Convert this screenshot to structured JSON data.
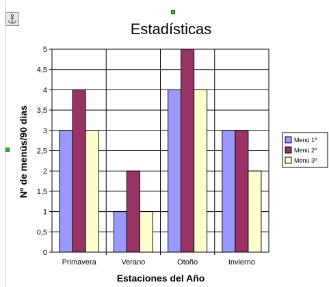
{
  "chart_data": {
    "type": "bar",
    "title": "Estadísticas",
    "xlabel": "Estaciones del Año",
    "ylabel": "Nº de menús/90 dias",
    "categories": [
      "Primavera",
      "Verano",
      "Otoño",
      "Invierno"
    ],
    "ylim": [
      0,
      5
    ],
    "yticks": [
      "0",
      "0,5",
      "1",
      "1,5",
      "2",
      "2,5",
      "3",
      "3,5",
      "4",
      "4,5",
      "5"
    ],
    "grid": true,
    "legend_position": "right",
    "series": [
      {
        "name": "Menú 1º",
        "color": "#9999ff",
        "values": [
          3,
          1,
          4,
          3
        ]
      },
      {
        "name": "Menú 2º",
        "color": "#993366",
        "values": [
          4,
          2,
          5,
          3
        ]
      },
      {
        "name": "Menú 3º",
        "color": "#ffffcc",
        "values": [
          3,
          1,
          4,
          2
        ]
      }
    ]
  },
  "icons": {
    "anchor": "anchor-icon"
  }
}
